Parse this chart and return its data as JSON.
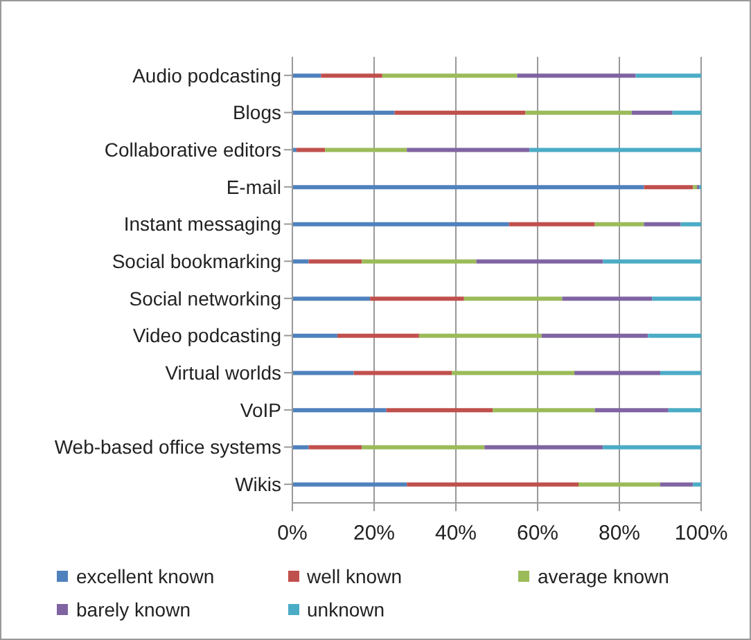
{
  "chart_data": {
    "type": "bar",
    "orientation": "horizontal",
    "stacked": true,
    "categories": [
      "Audio podcasting",
      "Blogs",
      "Collaborative editors",
      "E-mail",
      "Instant messaging",
      "Social bookmarking",
      "Social networking",
      "Video podcasting",
      "Virtual worlds",
      "VoIP",
      "Web-based office systems",
      "Wikis"
    ],
    "series": [
      {
        "name": "excellent known",
        "color": "#4f81bd",
        "values": [
          7,
          25,
          1,
          86,
          53,
          4,
          19,
          11,
          15,
          23,
          4,
          28
        ]
      },
      {
        "name": "well known",
        "color": "#c0504d",
        "values": [
          15,
          32,
          7,
          12,
          21,
          13,
          23,
          20,
          24,
          26,
          13,
          42
        ]
      },
      {
        "name": "average known",
        "color": "#9bbb59",
        "values": [
          33,
          26,
          20,
          1,
          12,
          28,
          24,
          30,
          30,
          25,
          30,
          20
        ]
      },
      {
        "name": "barely known",
        "color": "#8064a2",
        "values": [
          29,
          10,
          30,
          0.5,
          9,
          31,
          22,
          26,
          21,
          18,
          29,
          8
        ]
      },
      {
        "name": "unknown",
        "color": "#4bacc6",
        "values": [
          16,
          7,
          42,
          0.5,
          5,
          24,
          12,
          13,
          10,
          8,
          24,
          2
        ]
      }
    ],
    "xlim": [
      0,
      100
    ],
    "xticks": [
      {
        "value": 0,
        "label": "0%"
      },
      {
        "value": 20,
        "label": "20%"
      },
      {
        "value": 40,
        "label": "40%"
      },
      {
        "value": 60,
        "label": "60%"
      },
      {
        "value": 80,
        "label": "80%"
      },
      {
        "value": 100,
        "label": "100%"
      }
    ],
    "grid": "x",
    "legend": "bottom"
  }
}
